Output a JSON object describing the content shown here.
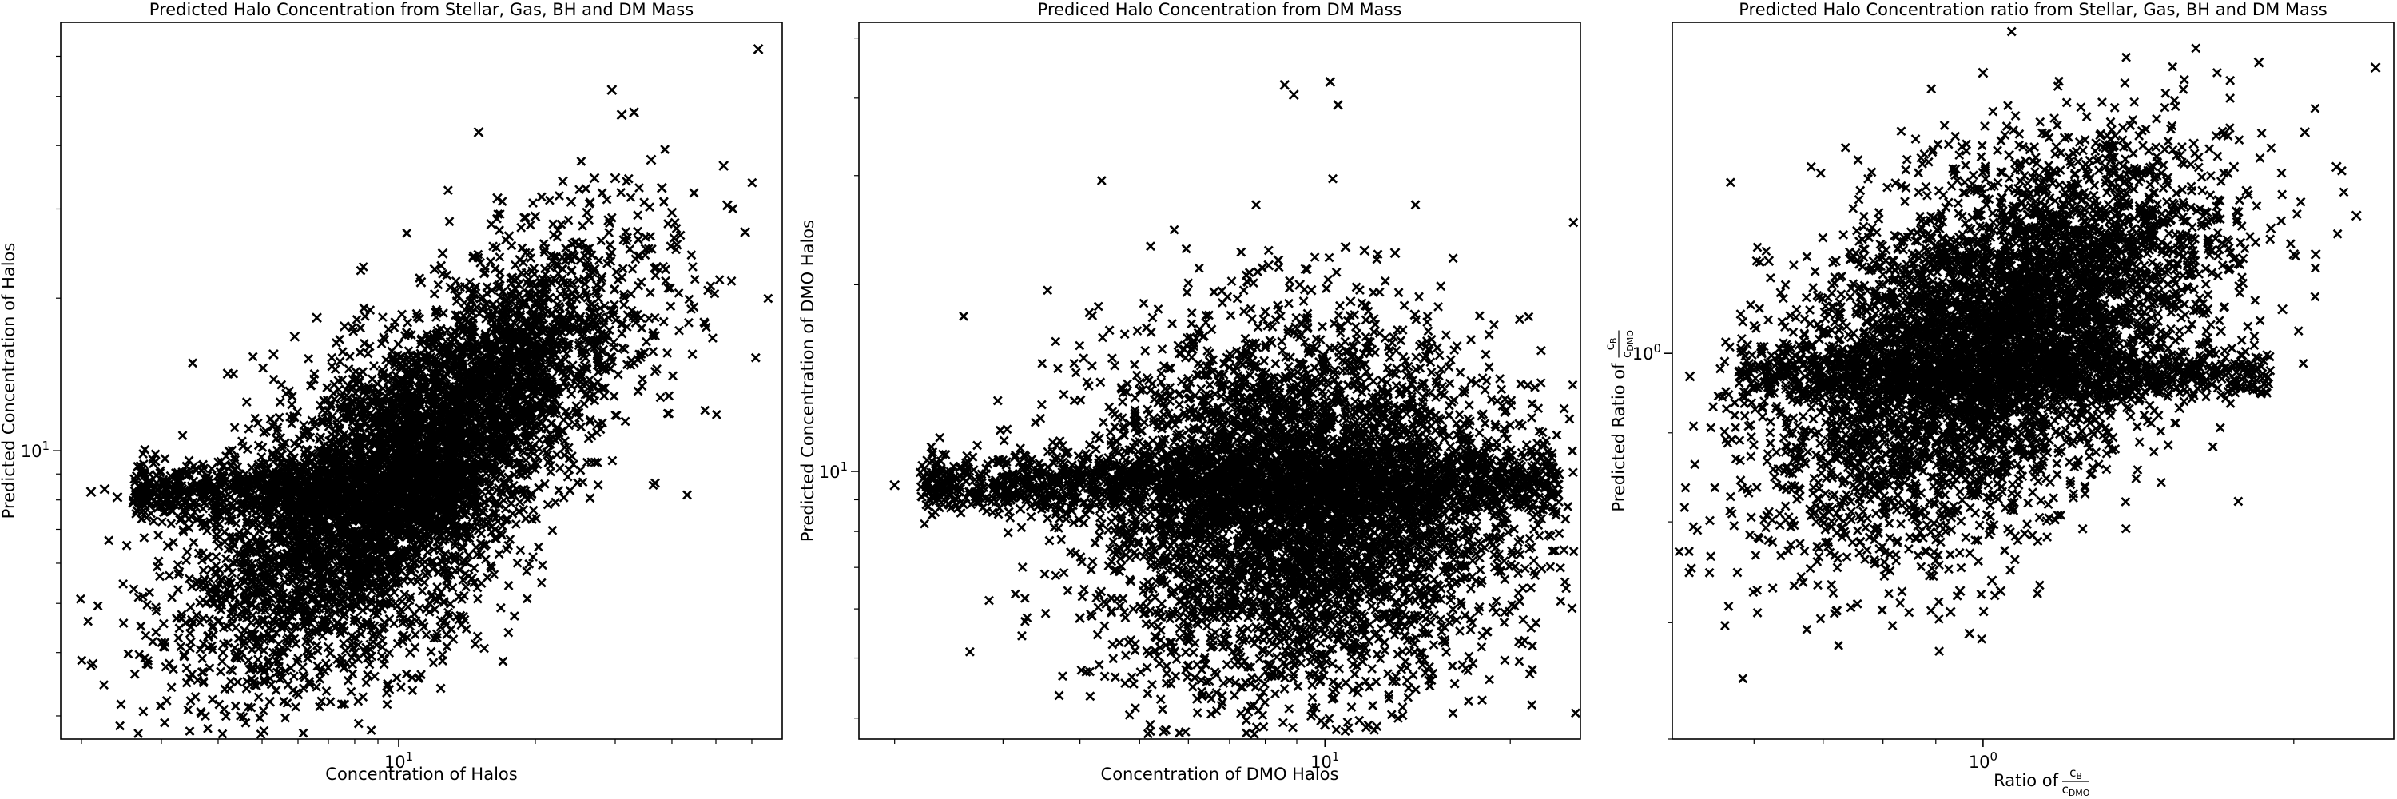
{
  "chart_data": [
    {
      "type": "scatter",
      "title": "Predicted Halo Concentration from Stellar, Gas, BH and DM Mass",
      "xlabel": "Concentration of Halos",
      "ylabel": "Predicted Concentration of Halos",
      "xscale": "log",
      "yscale": "log",
      "xlim": [
        1.8,
        70
      ],
      "ylim": [
        2.7,
        70
      ],
      "xticks": [
        {
          "value": 10,
          "label": "10",
          "sup": "1"
        }
      ],
      "yticks": [
        {
          "value": 10,
          "label": "10",
          "sup": "1"
        }
      ],
      "marker": "x",
      "marker_color": "#000000",
      "grid": false,
      "points": [
        [
          2.1,
          8.3
        ],
        [
          2.25,
          8.4
        ],
        [
          2.4,
          8.1
        ],
        [
          2.6,
          7.9
        ],
        [
          2.8,
          8.0
        ],
        [
          3.0,
          8.2
        ],
        [
          3.1,
          6.5
        ],
        [
          3.3,
          7.3
        ],
        [
          3.5,
          5.4
        ],
        [
          3.6,
          8.6
        ],
        [
          3.8,
          4.3
        ],
        [
          4.0,
          4.6
        ],
        [
          4.1,
          4.0
        ],
        [
          4.2,
          14.2
        ],
        [
          4.4,
          3.9
        ],
        [
          4.6,
          5.1
        ],
        [
          4.7,
          3.7
        ],
        [
          5.0,
          6.0
        ],
        [
          5.2,
          3.2
        ],
        [
          5.3,
          15.5
        ],
        [
          5.6,
          4.5
        ],
        [
          5.9,
          16.8
        ],
        [
          6.3,
          3.9
        ],
        [
          6.6,
          18.3
        ],
        [
          7.0,
          4.1
        ],
        [
          7.6,
          17.6
        ],
        [
          8.0,
          4.0
        ],
        [
          9.2,
          4.1
        ],
        [
          10.2,
          4.3
        ],
        [
          10.6,
          4.0
        ],
        [
          11.2,
          21.5
        ],
        [
          12.0,
          22.8
        ],
        [
          12.5,
          24.5
        ],
        [
          13.0,
          21.0
        ],
        [
          13.5,
          20.2
        ],
        [
          14.5,
          5.6
        ],
        [
          15.0,
          42.5
        ],
        [
          16.0,
          28.0
        ],
        [
          16.5,
          31.5
        ],
        [
          17.5,
          26.5
        ],
        [
          18.5,
          23.8
        ],
        [
          19.0,
          14.5
        ],
        [
          20.0,
          29.0
        ],
        [
          21.0,
          25.0
        ],
        [
          22.0,
          15.5
        ],
        [
          23.0,
          34.0
        ],
        [
          24.0,
          31.0
        ],
        [
          25.0,
          25.5
        ],
        [
          26.0,
          29.5
        ],
        [
          27.0,
          34.5
        ],
        [
          28.0,
          22.0
        ],
        [
          29.0,
          28.5
        ],
        [
          29.5,
          51.5
        ],
        [
          30.0,
          34.5
        ],
        [
          31.0,
          46.0
        ],
        [
          32.0,
          18.5
        ],
        [
          33.0,
          46.5
        ],
        [
          35.0,
          25.0
        ],
        [
          36.0,
          37.5
        ],
        [
          37.0,
          23.0
        ],
        [
          38.0,
          33.0
        ],
        [
          40.0,
          29.5
        ],
        [
          41.0,
          25.5
        ],
        [
          52.0,
          36.5
        ],
        [
          53.0,
          30.5
        ],
        [
          58.0,
          27.0
        ],
        [
          62.0,
          62.0
        ]
      ]
    },
    {
      "type": "scatter",
      "title": "Prediced Halo Concentration from DM Mass",
      "xlabel": "Concentration of DMO Halos",
      "ylabel": "Predicted Concentration of DMO Halos",
      "xscale": "log",
      "yscale": "log",
      "xlim": [
        1.75,
        26
      ],
      "ylim": [
        3.7,
        53
      ],
      "xticks": [
        {
          "value": 10,
          "label": "10",
          "sup": "1"
        }
      ],
      "yticks": [
        {
          "value": 10,
          "label": "10",
          "sup": "1"
        }
      ],
      "marker": "x",
      "marker_color": "#000000",
      "grid": false,
      "points": [
        [
          2.0,
          9.5
        ],
        [
          2.3,
          9.7
        ],
        [
          2.5,
          9.4
        ],
        [
          2.7,
          9.7
        ],
        [
          3.0,
          9.5
        ],
        [
          3.2,
          8.7
        ],
        [
          3.4,
          8.9
        ],
        [
          3.6,
          9.8
        ],
        [
          3.8,
          10.7
        ],
        [
          4.0,
          5.8
        ],
        [
          4.3,
          11.3
        ],
        [
          4.5,
          8.3
        ],
        [
          4.8,
          5.3
        ],
        [
          5.0,
          13.9
        ],
        [
          5.2,
          3.9
        ],
        [
          5.4,
          5.2
        ],
        [
          5.5,
          13.6
        ],
        [
          5.8,
          11.5
        ],
        [
          6.0,
          14.1
        ],
        [
          6.2,
          4.3
        ],
        [
          6.5,
          12.4
        ],
        [
          6.8,
          13.6
        ],
        [
          7.0,
          4.6
        ],
        [
          7.3,
          15.5
        ],
        [
          7.5,
          4.1
        ],
        [
          7.8,
          12.7
        ],
        [
          8.0,
          18.1
        ],
        [
          8.1,
          21.5
        ],
        [
          8.4,
          21.9
        ],
        [
          8.6,
          42.0
        ],
        [
          8.9,
          40.5
        ],
        [
          9.1,
          20.0
        ],
        [
          9.3,
          21.2
        ],
        [
          9.5,
          19.6
        ],
        [
          9.8,
          15.0
        ],
        [
          10.0,
          3.9
        ],
        [
          10.2,
          42.5
        ],
        [
          10.5,
          39.0
        ],
        [
          10.8,
          23.0
        ],
        [
          11.0,
          18.8
        ],
        [
          11.3,
          4.4
        ],
        [
          11.6,
          22.7
        ],
        [
          12.0,
          17.6
        ],
        [
          12.5,
          5.3
        ],
        [
          13.0,
          22.5
        ],
        [
          13.3,
          4.8
        ],
        [
          13.6,
          4.6
        ],
        [
          14.0,
          17.9
        ],
        [
          14.5,
          15.2
        ],
        [
          15.5,
          11.7
        ],
        [
          16.0,
          6.2
        ],
        [
          17.0,
          11.1
        ],
        [
          18.5,
          10.5
        ],
        [
          19.0,
          9.1
        ],
        [
          20.5,
          9.3
        ],
        [
          22.0,
          9.6
        ],
        [
          24.0,
          9.9
        ]
      ]
    },
    {
      "type": "scatter",
      "title": "Predicted Halo Concentration ratio from Stellar, Gas, BH and DM Mass",
      "xlabel": "Ratio of",
      "xlabel_fraction": {
        "numerator": "c",
        "numerator_sub": "B",
        "denominator": "c",
        "denominator_sub": "DMO"
      },
      "ylabel": "Predicted Ratio of",
      "ylabel_fraction": {
        "numerator": "c",
        "numerator_sub": "B",
        "denominator": "c",
        "denominator_sub": "DMO"
      },
      "xscale": "log",
      "yscale": "log",
      "xlim": [
        0.5,
        2.5
      ],
      "ylim": [
        0.6,
        1.55
      ],
      "xticks": [
        {
          "value": 1,
          "label": "10",
          "sup": "0"
        }
      ],
      "yticks": [
        {
          "value": 1,
          "label": "10",
          "sup": "0"
        }
      ],
      "marker": "x",
      "marker_color": "#000000",
      "grid": false,
      "points": [
        [
          0.52,
          0.97
        ],
        [
          0.59,
          0.99
        ],
        [
          0.61,
          1.0
        ],
        [
          0.62,
          1.13
        ],
        [
          0.64,
          1.0
        ],
        [
          0.65,
          0.99
        ],
        [
          0.66,
          0.96
        ],
        [
          0.68,
          1.04
        ],
        [
          0.7,
          0.93
        ],
        [
          0.72,
          1.13
        ],
        [
          0.74,
          0.86
        ],
        [
          0.76,
          0.88
        ],
        [
          0.78,
          1.12
        ],
        [
          0.8,
          0.84
        ],
        [
          0.82,
          0.91
        ],
        [
          0.84,
          0.82
        ],
        [
          0.86,
          0.81
        ],
        [
          0.88,
          0.77
        ],
        [
          0.9,
          0.76
        ],
        [
          0.92,
          0.79
        ],
        [
          0.93,
          0.71
        ],
        [
          0.95,
          0.73
        ],
        [
          0.97,
          0.69
        ],
        [
          1.0,
          1.45
        ],
        [
          1.02,
          0.74
        ],
        [
          1.04,
          0.73
        ],
        [
          1.06,
          1.3
        ],
        [
          1.1,
          1.29
        ],
        [
          1.15,
          1.24
        ],
        [
          1.2,
          1.33
        ],
        [
          1.25,
          1.28
        ],
        [
          1.3,
          1.2
        ],
        [
          1.35,
          1.08
        ],
        [
          1.4,
          0.96
        ],
        [
          1.45,
          1.27
        ],
        [
          1.5,
          1.31
        ],
        [
          1.55,
          0.93
        ],
        [
          1.6,
          1.32
        ],
        [
          1.65,
          1.06
        ],
        [
          1.7,
          1.03
        ],
        [
          1.75,
          1.28
        ],
        [
          1.8,
          1.24
        ],
        [
          1.85,
          1.47
        ],
        [
          1.9,
          1.18
        ],
        [
          1.95,
          1.06
        ],
        [
          2.0,
          1.14
        ],
        [
          2.05,
          1.34
        ],
        [
          2.1,
          1.14
        ],
        [
          2.2,
          1.28
        ],
        [
          2.3,
          1.2
        ],
        [
          2.4,
          1.46
        ]
      ]
    }
  ]
}
